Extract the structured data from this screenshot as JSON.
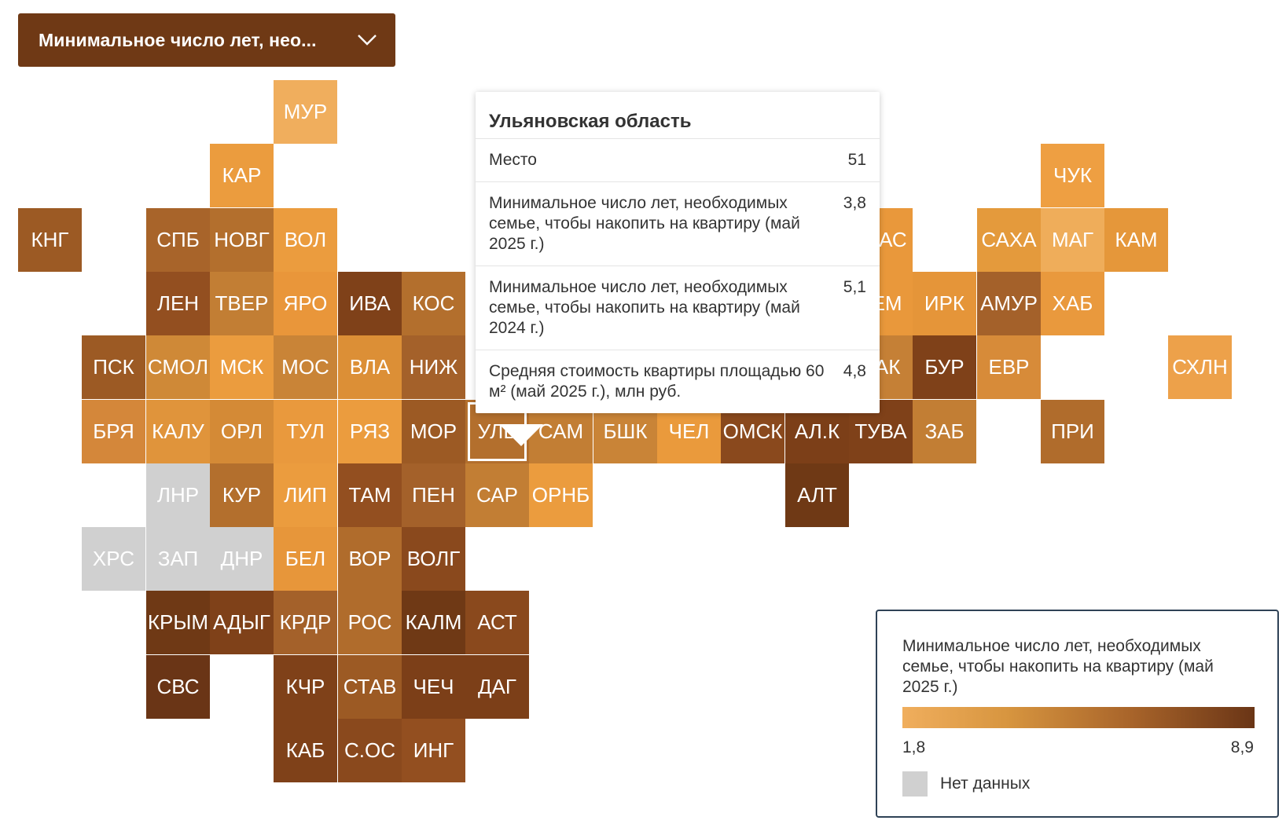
{
  "dropdown": {
    "label": "Минимальное число лет, нео..."
  },
  "colors": {
    "header": "#6f3915",
    "no_data": "#d0d0d0",
    "scale_min": "#f0ae5d",
    "scale_max": "#6a3516"
  },
  "tooltip": {
    "title": "Ульяновская область",
    "rows": [
      {
        "label": "Место",
        "value": "51"
      },
      {
        "label": "Минимальное число лет, необходимых семье, чтобы накопить на квартиру (май 2025 г.)",
        "value": "3,8"
      },
      {
        "label": "Минимальное число лет, необходимых семье, чтобы накопить на квартиру (май 2024 г.)",
        "value": "5,1"
      },
      {
        "label": "Средняя стоимость квартиры площадью 60 м² (май 2025 г.), млн руб.",
        "value": "4,8"
      }
    ]
  },
  "legend": {
    "title": "Минимальное число лет, необходимых семье, чтобы накопить на квартиру (май 2025 г.)",
    "min": "1,8",
    "max": "8,9",
    "no_data": "Нет данных"
  },
  "regions": [
    {
      "label": "МУР",
      "color": "#f0ae5d"
    },
    {
      "label": "КАР",
      "color": "#eb9c3e"
    },
    {
      "label": "ЧУК",
      "color": "#ee9f42"
    },
    {
      "label": "КНГ",
      "color": "#9c5a24"
    },
    {
      "label": "СПБ",
      "color": "#a8642a"
    },
    {
      "label": "НОВГ",
      "color": "#b36f2d"
    },
    {
      "label": "ВОЛ",
      "color": "#eb9c3e"
    },
    {
      "label": "КРАС",
      "color": "#e9983b"
    },
    {
      "label": "САХА",
      "color": "#e49a3c"
    },
    {
      "label": "МАГ",
      "color": "#efad5a"
    },
    {
      "label": "КАМ",
      "color": "#e5973a"
    },
    {
      "label": "ЛЕН",
      "color": "#934f20"
    },
    {
      "label": "ТВЕР",
      "color": "#c27e34"
    },
    {
      "label": "ЯРО",
      "color": "#e9963a"
    },
    {
      "label": "ИВА",
      "color": "#7f4119"
    },
    {
      "label": "КОС",
      "color": "#b36f2d"
    },
    {
      "label": "КЕМ",
      "color": "#e9983b"
    },
    {
      "label": "ИРК",
      "color": "#e59539"
    },
    {
      "label": "АМУР",
      "color": "#a4612a"
    },
    {
      "label": "ХАБ",
      "color": "#e9993d"
    },
    {
      "label": "ПСК",
      "color": "#9c5a24"
    },
    {
      "label": "СМОЛ",
      "color": "#cf8937"
    },
    {
      "label": "МСК",
      "color": "#eb9c3e"
    },
    {
      "label": "МОС",
      "color": "#c98437"
    },
    {
      "label": "ВЛА",
      "color": "#dc8f36"
    },
    {
      "label": "НИЖ",
      "color": "#a4612a"
    },
    {
      "label": "ХАК",
      "color": "#c58036"
    },
    {
      "label": "БУР",
      "color": "#7f4119"
    },
    {
      "label": "ЕВР",
      "color": "#d78b39"
    },
    {
      "label": "СХЛН",
      "color": "#eda14a"
    },
    {
      "label": "БРЯ",
      "color": "#d4873a"
    },
    {
      "label": "КАЛУ",
      "color": "#e0943b"
    },
    {
      "label": "ОРЛ",
      "color": "#d48a36"
    },
    {
      "label": "ТУЛ",
      "color": "#e9993d"
    },
    {
      "label": "РЯЗ",
      "color": "#eb9c3e"
    },
    {
      "label": "МОР",
      "color": "#9c5a24"
    },
    {
      "label": "УЛЬ",
      "color": "#b36f2d",
      "selected": true
    },
    {
      "label": "САМ",
      "color": "#c27e34"
    },
    {
      "label": "БШК",
      "color": "#c98437"
    },
    {
      "label": "ЧЕЛ",
      "color": "#ea9a3c"
    },
    {
      "label": "ОМСК",
      "color": "#8a491d"
    },
    {
      "label": "АЛ.К",
      "color": "#7c3f18"
    },
    {
      "label": "ТУВА",
      "color": "#7f4119"
    },
    {
      "label": "ЗАБ",
      "color": "#c27e34"
    },
    {
      "label": "ПРИ",
      "color": "#b06c2c"
    },
    {
      "label": "ЛНР",
      "color": "#d0d0d0"
    },
    {
      "label": "КУР",
      "color": "#b36f2d"
    },
    {
      "label": "ЛИП",
      "color": "#eb9c3e"
    },
    {
      "label": "ТАМ",
      "color": "#934f20"
    },
    {
      "label": "ПЕН",
      "color": "#a4612a"
    },
    {
      "label": "САР",
      "color": "#c27e34"
    },
    {
      "label": "ОРНБ",
      "color": "#eb9c3e"
    },
    {
      "label": "АЛТ",
      "color": "#6f3915"
    },
    {
      "label": "ХРС",
      "color": "#d0d0d0"
    },
    {
      "label": "ЗАП",
      "color": "#d0d0d0"
    },
    {
      "label": "ДНР",
      "color": "#d0d0d0"
    },
    {
      "label": "БЕЛ",
      "color": "#e7963a"
    },
    {
      "label": "ВОР",
      "color": "#b06c2c"
    },
    {
      "label": "ВОЛГ",
      "color": "#8a491d"
    },
    {
      "label": "КРЫМ",
      "color": "#6f3915"
    },
    {
      "label": "АДЫГ",
      "color": "#7f4119"
    },
    {
      "label": "КРДР",
      "color": "#a4612a"
    },
    {
      "label": "РОС",
      "color": "#b06c2c"
    },
    {
      "label": "КАЛМ",
      "color": "#6f3915"
    },
    {
      "label": "АСТ",
      "color": "#8a491d"
    },
    {
      "label": "СВС",
      "color": "#6a3516"
    },
    {
      "label": "КЧР",
      "color": "#7f4119"
    },
    {
      "label": "СТАВ",
      "color": "#9c5a24"
    },
    {
      "label": "ЧЕЧ",
      "color": "#7c3f18"
    },
    {
      "label": "ДАГ",
      "color": "#7c3f18"
    },
    {
      "label": "КАБ",
      "color": "#7f4119"
    },
    {
      "label": "С.ОС",
      "color": "#8a491d"
    },
    {
      "label": "ИНГ",
      "color": "#934f20"
    }
  ]
}
